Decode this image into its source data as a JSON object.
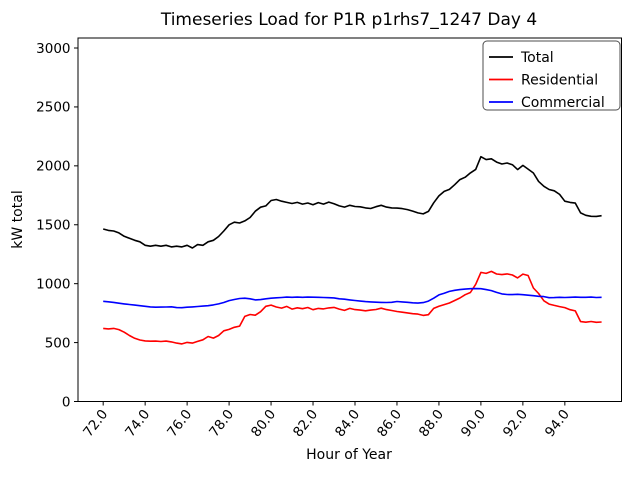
{
  "chart_data": {
    "type": "line",
    "title": "Timeseries Load for P1R p1rhs7_1247  Day 4",
    "xlabel": "Hour of Year",
    "ylabel": "kW total",
    "xlim": [
      70.8,
      96.7
    ],
    "ylim": [
      0,
      3085
    ],
    "grid": false,
    "legend_position": "upper right",
    "xtick_values": [
      72,
      74,
      76,
      78,
      80,
      82,
      84,
      86,
      88,
      90,
      92,
      94
    ],
    "xtick_labels": [
      "72.0",
      "74.0",
      "76.0",
      "78.0",
      "80.0",
      "82.0",
      "84.0",
      "86.0",
      "88.0",
      "90.0",
      "92.0",
      "94.0"
    ],
    "ytick_values": [
      0,
      500,
      1000,
      1500,
      2000,
      2500,
      3000
    ],
    "ytick_labels": [
      "0",
      "500",
      "1000",
      "1500",
      "2000",
      "2500",
      "3000"
    ],
    "x": [
      72,
      72.25,
      72.5,
      72.75,
      73,
      73.25,
      73.5,
      73.75,
      74,
      74.25,
      74.5,
      74.75,
      75,
      75.25,
      75.5,
      75.75,
      76,
      76.25,
      76.5,
      76.75,
      77,
      77.25,
      77.5,
      77.75,
      78,
      78.25,
      78.5,
      78.75,
      79,
      79.25,
      79.5,
      79.75,
      80,
      80.25,
      80.5,
      80.75,
      81,
      81.25,
      81.5,
      81.75,
      82,
      82.25,
      82.5,
      82.75,
      83,
      83.25,
      83.5,
      83.75,
      84,
      84.25,
      84.5,
      84.75,
      85,
      85.25,
      85.5,
      85.75,
      86,
      86.25,
      86.5,
      86.75,
      87,
      87.25,
      87.5,
      87.75,
      88,
      88.25,
      88.5,
      88.75,
      89,
      89.25,
      89.5,
      89.75,
      90,
      90.25,
      90.5,
      90.75,
      91,
      91.25,
      91.5,
      91.75,
      92,
      92.25,
      92.5,
      92.75,
      93,
      93.25,
      93.5,
      93.75,
      94,
      94.25,
      94.5,
      94.75,
      95,
      95.25,
      95.5,
      95.75
    ],
    "series": [
      {
        "name": "Total",
        "color": "#000000",
        "values": [
          1464,
          1452,
          1447,
          1431,
          1402,
          1385,
          1368,
          1355,
          1326,
          1318,
          1326,
          1318,
          1326,
          1312,
          1318,
          1312,
          1326,
          1303,
          1332,
          1326,
          1355,
          1368,
          1400,
          1447,
          1500,
          1522,
          1515,
          1533,
          1562,
          1615,
          1649,
          1660,
          1706,
          1714,
          1700,
          1690,
          1680,
          1690,
          1675,
          1685,
          1670,
          1688,
          1675,
          1692,
          1678,
          1660,
          1650,
          1665,
          1655,
          1652,
          1643,
          1638,
          1653,
          1665,
          1650,
          1643,
          1641,
          1637,
          1629,
          1616,
          1601,
          1592,
          1613,
          1686,
          1745,
          1783,
          1800,
          1840,
          1883,
          1904,
          1940,
          1970,
          2078,
          2053,
          2060,
          2032,
          2016,
          2024,
          2010,
          1968,
          2004,
          1972,
          1939,
          1868,
          1826,
          1799,
          1788,
          1758,
          1700,
          1690,
          1684,
          1601,
          1580,
          1572,
          1571,
          1577
        ]
      },
      {
        "name": "Residential",
        "color": "#ff0000",
        "values": [
          620,
          616,
          620,
          610,
          588,
          560,
          536,
          522,
          514,
          512,
          513,
          509,
          513,
          506,
          496,
          489,
          502,
          496,
          510,
          524,
          552,
          538,
          560,
          600,
          612,
          630,
          640,
          722,
          738,
          732,
          762,
          808,
          818,
          802,
          793,
          807,
          784,
          795,
          788,
          798,
          779,
          790,
          786,
          794,
          799,
          784,
          773,
          790,
          780,
          776,
          770,
          776,
          781,
          792,
          780,
          772,
          764,
          758,
          752,
          745,
          742,
          731,
          737,
          790,
          808,
          822,
          836,
          857,
          878,
          906,
          925,
          995,
          1096,
          1087,
          1104,
          1082,
          1077,
          1083,
          1074,
          1049,
          1081,
          1069,
          963,
          917,
          855,
          827,
          816,
          805,
          797,
          779,
          769,
          678,
          673,
          679,
          672,
          675
        ]
      },
      {
        "name": "Commercial",
        "color": "#0000ff",
        "values": [
          850,
          846,
          841,
          834,
          828,
          823,
          818,
          813,
          808,
          803,
          800,
          801,
          802,
          804,
          797,
          796,
          800,
          803,
          806,
          810,
          813,
          820,
          828,
          840,
          856,
          866,
          874,
          877,
          872,
          862,
          865,
          872,
          877,
          880,
          883,
          886,
          884,
          886,
          884,
          886,
          885,
          884,
          883,
          881,
          879,
          872,
          868,
          862,
          857,
          852,
          848,
          845,
          843,
          841,
          840,
          842,
          849,
          845,
          842,
          838,
          835,
          839,
          852,
          877,
          905,
          919,
          934,
          944,
          950,
          954,
          957,
          958,
          957,
          950,
          941,
          926,
          913,
          908,
          907,
          910,
          906,
          902,
          898,
          893,
          890,
          881,
          882,
          884,
          883,
          884,
          886,
          884,
          884,
          886,
          883,
          884
        ]
      }
    ]
  }
}
